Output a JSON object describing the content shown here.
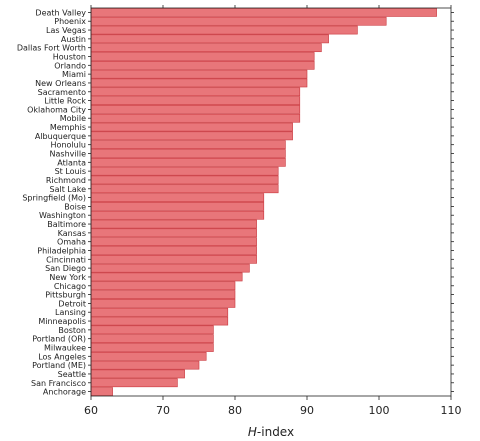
{
  "chart_data": {
    "type": "bar",
    "orientation": "horizontal",
    "xlabel_italic": "H",
    "xlabel_rest": "-index",
    "xlim": [
      60,
      110
    ],
    "xticks": [
      60,
      70,
      80,
      90,
      100,
      110
    ],
    "grid": false,
    "bar_color": "#e8767a",
    "bar_edge_color": "#c9373d",
    "categories": [
      "Death Valley",
      "Phoenix",
      "Las Vegas",
      "Austin",
      "Dallas Fort Worth",
      "Houston",
      "Orlando",
      "Miami",
      "New Orleans",
      "Sacramento",
      "Little Rock",
      "Oklahoma City",
      "Mobile",
      "Memphis",
      "Albuquerque",
      "Honolulu",
      "Nashville",
      "Atlanta",
      "St Louis",
      "Richmond",
      "Salt Lake",
      "Springfield (Mo)",
      "Boise",
      "Washington",
      "Baltimore",
      "Kansas",
      "Omaha",
      "Philadelphia",
      "Cincinnati",
      "San Diego",
      "New York",
      "Chicago",
      "Pittsburgh",
      "Detroit",
      "Lansing",
      "Minneapolis",
      "Boston",
      "Portland (OR)",
      "Milwaukee",
      "Los Angeles",
      "Portland (ME)",
      "Seattle",
      "San Francisco",
      "Anchorage"
    ],
    "values": [
      108,
      101,
      97,
      93,
      92,
      91,
      91,
      90,
      90,
      89,
      89,
      89,
      89,
      88,
      88,
      87,
      87,
      87,
      86,
      86,
      86,
      84,
      84,
      84,
      83,
      83,
      83,
      83,
      83,
      82,
      81,
      80,
      80,
      80,
      79,
      79,
      77,
      77,
      77,
      76,
      75,
      73,
      72,
      63
    ]
  }
}
